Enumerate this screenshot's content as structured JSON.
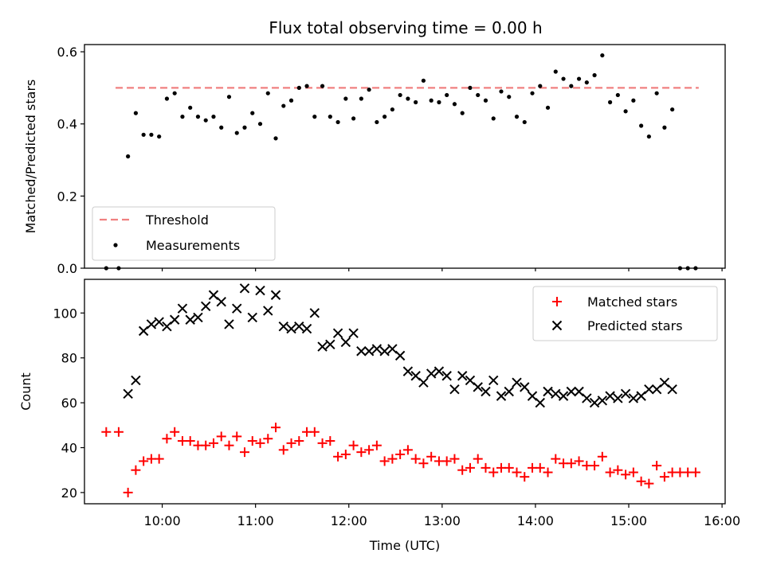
{
  "chart_data": [
    {
      "type": "scatter",
      "title": "Flux total observing time = 0.00 h",
      "xlabel": "",
      "ylabel": "Matched/Predicted stars",
      "xlim": [
        "09:10",
        "16:02"
      ],
      "ylim": [
        0,
        0.62
      ],
      "yticks": [
        0.0,
        0.2,
        0.4,
        0.6
      ],
      "ytick_labels": [
        "0.0",
        "0.2",
        "0.4",
        "0.6"
      ],
      "grid": false,
      "legend_position": "lower-left",
      "threshold": {
        "name": "Threshold",
        "y": 0.5,
        "x_range": [
          "09:30",
          "15:45"
        ],
        "color": "#f08080"
      },
      "series": [
        {
          "name": "Measurements",
          "color": "#000000",
          "x": [
            "09:24",
            "09:32",
            "09:38",
            "09:43",
            "09:48",
            "09:53",
            "09:58",
            "10:03",
            "10:08",
            "10:13",
            "10:18",
            "10:23",
            "10:28",
            "10:33",
            "10:38",
            "10:43",
            "10:48",
            "10:53",
            "10:58",
            "11:03",
            "11:08",
            "11:13",
            "11:18",
            "11:23",
            "11:28",
            "11:33",
            "11:38",
            "11:43",
            "11:48",
            "11:53",
            "11:58",
            "12:03",
            "12:08",
            "12:13",
            "12:18",
            "12:23",
            "12:28",
            "12:33",
            "12:38",
            "12:43",
            "12:48",
            "12:53",
            "12:58",
            "13:03",
            "13:08",
            "13:13",
            "13:18",
            "13:23",
            "13:28",
            "13:33",
            "13:38",
            "13:43",
            "13:48",
            "13:53",
            "13:58",
            "14:03",
            "14:08",
            "14:13",
            "14:18",
            "14:23",
            "14:28",
            "14:33",
            "14:38",
            "14:43",
            "14:48",
            "14:53",
            "14:58",
            "15:03",
            "15:08",
            "15:13",
            "15:18",
            "15:23",
            "15:28",
            "15:33",
            "15:38",
            "15:43"
          ],
          "y": [
            0.0,
            0.0,
            0.31,
            0.43,
            0.37,
            0.37,
            0.365,
            0.47,
            0.485,
            0.42,
            0.445,
            0.42,
            0.41,
            0.42,
            0.39,
            0.475,
            0.375,
            0.39,
            0.43,
            0.4,
            0.485,
            0.36,
            0.45,
            0.465,
            0.5,
            0.505,
            0.42,
            0.505,
            0.42,
            0.405,
            0.47,
            0.415,
            0.47,
            0.495,
            0.405,
            0.42,
            0.44,
            0.48,
            0.47,
            0.46,
            0.52,
            0.465,
            0.46,
            0.48,
            0.455,
            0.43,
            0.5,
            0.48,
            0.465,
            0.415,
            0.49,
            0.475,
            0.42,
            0.405,
            0.485,
            0.505,
            0.445,
            0.545,
            0.525,
            0.505,
            0.525,
            0.515,
            0.535,
            0.59,
            0.46,
            0.48,
            0.435,
            0.465,
            0.395,
            0.365,
            0.485,
            0.39,
            0.44,
            0.0,
            0.0,
            0.0
          ]
        }
      ]
    },
    {
      "type": "scatter",
      "title": "",
      "xlabel": "Time (UTC)",
      "ylabel": "Count",
      "xlim": [
        "09:10",
        "16:02"
      ],
      "ylim": [
        15,
        115
      ],
      "xticks": [
        "10:00",
        "11:00",
        "12:00",
        "13:00",
        "14:00",
        "15:00",
        "16:00"
      ],
      "yticks": [
        20,
        40,
        60,
        80,
        100
      ],
      "grid": false,
      "legend_position": "upper-right",
      "series": [
        {
          "name": "Matched stars",
          "color": "#ff0000",
          "marker": "+",
          "x": [
            "09:24",
            "09:32",
            "09:38",
            "09:43",
            "09:48",
            "09:53",
            "09:58",
            "10:03",
            "10:08",
            "10:13",
            "10:18",
            "10:23",
            "10:28",
            "10:33",
            "10:38",
            "10:43",
            "10:48",
            "10:53",
            "10:58",
            "11:03",
            "11:08",
            "11:13",
            "11:18",
            "11:23",
            "11:28",
            "11:33",
            "11:38",
            "11:43",
            "11:48",
            "11:53",
            "11:58",
            "12:03",
            "12:08",
            "12:13",
            "12:18",
            "12:23",
            "12:28",
            "12:33",
            "12:38",
            "12:43",
            "12:48",
            "12:53",
            "12:58",
            "13:03",
            "13:08",
            "13:13",
            "13:18",
            "13:23",
            "13:28",
            "13:33",
            "13:38",
            "13:43",
            "13:48",
            "13:53",
            "13:58",
            "14:03",
            "14:08",
            "14:13",
            "14:18",
            "14:23",
            "14:28",
            "14:33",
            "14:38",
            "14:43",
            "14:48",
            "14:53",
            "14:58",
            "15:03",
            "15:08",
            "15:13",
            "15:18",
            "15:23",
            "15:28",
            "15:33",
            "15:38",
            "15:43"
          ],
          "y": [
            47,
            47,
            20,
            30,
            34,
            35,
            35,
            44,
            47,
            43,
            43,
            41,
            41,
            42,
            45,
            41,
            45,
            38,
            43,
            42,
            44,
            49,
            39,
            42,
            43,
            47,
            47,
            42,
            43,
            36,
            37,
            41,
            38,
            39,
            41,
            34,
            35,
            37,
            39,
            35,
            33,
            36,
            34,
            34,
            35,
            30,
            31,
            35,
            31,
            29,
            31,
            31,
            29,
            27,
            31,
            31,
            29,
            35,
            33,
            33,
            34,
            32,
            32,
            36,
            29,
            30,
            28,
            29,
            25,
            24,
            32,
            27,
            29,
            29,
            29,
            29
          ]
        },
        {
          "name": "Predicted stars",
          "color": "#000000",
          "marker": "x",
          "x": [
            "09:38",
            "09:43",
            "09:48",
            "09:53",
            "09:58",
            "10:03",
            "10:08",
            "10:13",
            "10:18",
            "10:23",
            "10:28",
            "10:33",
            "10:38",
            "10:43",
            "10:48",
            "10:53",
            "10:58",
            "11:03",
            "11:08",
            "11:13",
            "11:18",
            "11:23",
            "11:28",
            "11:33",
            "11:38",
            "11:43",
            "11:48",
            "11:53",
            "11:58",
            "12:03",
            "12:08",
            "12:13",
            "12:18",
            "12:23",
            "12:28",
            "12:33",
            "12:38",
            "12:43",
            "12:48",
            "12:53",
            "12:58",
            "13:03",
            "13:08",
            "13:13",
            "13:18",
            "13:23",
            "13:28",
            "13:33",
            "13:38",
            "13:43",
            "13:48",
            "13:53",
            "13:58",
            "14:03",
            "14:08",
            "14:13",
            "14:18",
            "14:23",
            "14:28",
            "14:33",
            "14:38",
            "14:43",
            "14:48",
            "14:53",
            "14:58",
            "15:03",
            "15:08",
            "15:13",
            "15:18",
            "15:23",
            "15:28"
          ],
          "y": [
            64,
            70,
            92,
            95,
            96,
            94,
            97,
            102,
            97,
            98,
            103,
            108,
            105,
            95,
            102,
            111,
            98,
            110,
            101,
            108,
            94,
            93,
            94,
            93,
            100,
            85,
            86,
            91,
            87,
            91,
            83,
            83,
            84,
            83,
            84,
            81,
            74,
            72,
            69,
            73,
            74,
            72,
            66,
            72,
            70,
            67,
            65,
            70,
            63,
            65,
            69,
            67,
            63,
            60,
            65,
            64,
            63,
            65,
            65,
            62,
            60,
            61,
            63,
            62,
            64,
            62,
            63,
            66,
            66,
            69,
            66
          ]
        }
      ]
    }
  ]
}
